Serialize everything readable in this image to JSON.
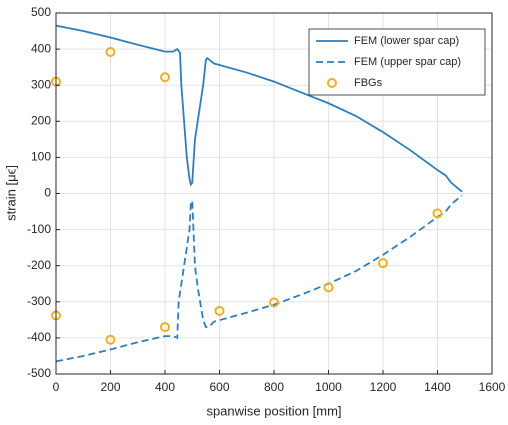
{
  "chart_data": {
    "type": "line",
    "x_label": "spanwise position [mm]",
    "y_label": "strain [μϵ]",
    "xlim": [
      0,
      1600
    ],
    "xticks": [
      0,
      200,
      400,
      600,
      800,
      1000,
      1200,
      1400,
      1600
    ],
    "ylim": [
      -500,
      500
    ],
    "yticks": [
      -500,
      -400,
      -300,
      -200,
      -100,
      0,
      100,
      200,
      300,
      400,
      500
    ],
    "grid": true,
    "legend": "upper-right",
    "series": [
      {
        "name": "FEM (lower spar cap)",
        "type": "line",
        "dash": false,
        "color": "#2e7ebc",
        "x": [
          0,
          100,
          200,
          300,
          400,
          430,
          445,
          455,
          460,
          470,
          480,
          490,
          495,
          500,
          510,
          520,
          540,
          550,
          555,
          580,
          700,
          800,
          900,
          1000,
          1100,
          1200,
          1300,
          1400,
          1430,
          1450,
          1490
        ],
        "values": [
          465,
          450,
          432,
          412,
          393,
          393,
          400,
          390,
          300,
          200,
          100,
          40,
          25,
          30,
          150,
          200,
          300,
          370,
          375,
          360,
          335,
          310,
          280,
          250,
          215,
          170,
          120,
          65,
          50,
          30,
          5
        ]
      },
      {
        "name": "FEM (upper spar cap)",
        "type": "line",
        "dash": true,
        "color": "#2e7ebc",
        "x": [
          0,
          100,
          200,
          300,
          400,
          430,
          445,
          450,
          470,
          480,
          490,
          495,
          500,
          510,
          520,
          540,
          550,
          560,
          580,
          700,
          800,
          900,
          1000,
          1100,
          1200,
          1300,
          1400,
          1430,
          1450,
          1490
        ],
        "values": [
          -465,
          -450,
          -432,
          -412,
          -395,
          -395,
          -400,
          -300,
          -200,
          -150,
          -100,
          -25,
          -20,
          -200,
          -260,
          -350,
          -370,
          -370,
          -355,
          -330,
          -308,
          -280,
          -250,
          -215,
          -170,
          -120,
          -65,
          -50,
          -30,
          -5
        ]
      },
      {
        "name": "FBGs",
        "type": "scatter",
        "color": "#edb120",
        "x": [
          0,
          200,
          400,
          0,
          200,
          400,
          600,
          800,
          1000,
          1200,
          1400
        ],
        "values": [
          310,
          392,
          322,
          -338,
          -405,
          -370,
          -325,
          -302,
          -260,
          -193,
          -55
        ]
      }
    ]
  }
}
